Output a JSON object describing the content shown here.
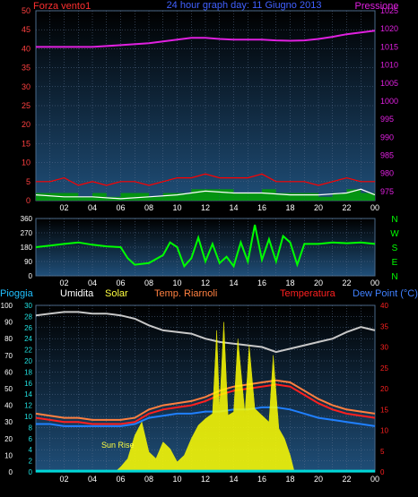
{
  "chart_data": [
    {
      "type": "line",
      "title": "24 hour graph day: 11 Giugno 2013",
      "left_axis_label": "Forza vento1",
      "right_axis_label": "Pressione",
      "x_ticks": [
        "02",
        "04",
        "06",
        "08",
        "10",
        "12",
        "14",
        "16",
        "18",
        "20",
        "22",
        "00"
      ],
      "x_range": [
        0,
        24
      ],
      "ylim_left": [
        0,
        50
      ],
      "y_ticks_left": [
        0,
        5,
        10,
        15,
        20,
        25,
        30,
        35,
        40,
        45,
        50
      ],
      "ylim_right": [
        972.5,
        1025
      ],
      "y_ticks_right": [
        975,
        980,
        985,
        990,
        995,
        1000,
        1005,
        1010,
        1015,
        1020,
        1025
      ],
      "grid": true,
      "series": [
        {
          "key": "pressure",
          "axis": "right",
          "color": "#e020e0",
          "x": [
            0,
            2,
            4,
            6,
            8,
            9,
            10,
            11,
            12,
            13,
            14,
            15,
            16,
            17,
            18,
            19,
            20,
            21,
            22,
            23,
            24
          ],
          "values": [
            1015,
            1015,
            1015,
            1015.5,
            1016,
            1016.5,
            1017,
            1017.5,
            1017.5,
            1017.2,
            1017,
            1017,
            1017,
            1016.8,
            1016.7,
            1016.8,
            1017.2,
            1017.8,
            1018.5,
            1019,
            1019.5
          ]
        },
        {
          "key": "wind_gust",
          "axis": "left",
          "color": "#ff0000",
          "x": [
            0,
            1,
            2,
            3,
            4,
            5,
            6,
            7,
            8,
            9,
            10,
            11,
            12,
            13,
            14,
            15,
            16,
            17,
            18,
            19,
            20,
            21,
            22,
            23,
            24
          ],
          "values": [
            5,
            5,
            6,
            4,
            5,
            4,
            5,
            5,
            4,
            5,
            6,
            6,
            7,
            6,
            6,
            6,
            7,
            5,
            5,
            5,
            4,
            5,
            6,
            5,
            5
          ]
        },
        {
          "key": "wind_speed",
          "axis": "left",
          "color": "#00a000",
          "x": [
            0,
            1,
            2,
            3,
            4,
            5,
            6,
            7,
            8,
            9,
            10,
            11,
            12,
            13,
            14,
            15,
            16,
            17,
            18,
            19,
            20,
            21,
            22,
            23,
            24
          ],
          "values": [
            2,
            2,
            2,
            1,
            2,
            1,
            2,
            2,
            1,
            2,
            2,
            3,
            3,
            3,
            2,
            2,
            3,
            2,
            2,
            2,
            1,
            2,
            3,
            2,
            2
          ]
        },
        {
          "key": "wind_avg",
          "axis": "left",
          "color": "#ffffff",
          "x": [
            0,
            2,
            4,
            6,
            8,
            10,
            12,
            14,
            16,
            18,
            20,
            22,
            23,
            24
          ],
          "values": [
            1.5,
            1,
            1,
            0.5,
            1,
            1.5,
            2.5,
            2,
            2,
            1.5,
            1.5,
            2,
            3,
            1.5
          ]
        }
      ]
    },
    {
      "type": "line",
      "x_ticks": [
        "02",
        "04",
        "06",
        "08",
        "10",
        "12",
        "14",
        "16",
        "18",
        "20",
        "22",
        "00"
      ],
      "ylim": [
        0,
        360
      ],
      "y_ticks": [
        0,
        90,
        180,
        270,
        360
      ],
      "direction_labels": [
        "N",
        "W",
        "S",
        "E",
        "N"
      ],
      "series": [
        {
          "key": "wind_direction",
          "color": "#00ff00",
          "x": [
            0,
            1,
            2,
            3,
            4,
            5,
            6,
            6.5,
            7,
            8,
            9,
            9.5,
            10,
            10.5,
            11,
            11.5,
            12,
            12.5,
            13,
            13.5,
            14,
            14.5,
            15,
            15.5,
            16,
            16.5,
            17,
            17.5,
            18,
            18.5,
            19,
            20,
            21,
            22,
            23,
            24
          ],
          "values": [
            180,
            190,
            200,
            210,
            195,
            185,
            180,
            110,
            70,
            80,
            130,
            210,
            180,
            60,
            110,
            240,
            90,
            200,
            80,
            120,
            60,
            210,
            90,
            320,
            100,
            230,
            90,
            250,
            210,
            70,
            200,
            200,
            210,
            205,
            210,
            200
          ]
        }
      ]
    },
    {
      "type": "line",
      "legend": [
        "Pioggia",
        "Umidita",
        "Solar",
        "Temp. Riarnoli",
        "Temperatura",
        "Dew Point (°C)"
      ],
      "x_ticks": [
        "02",
        "04",
        "06",
        "08",
        "10",
        "12",
        "14",
        "16",
        "18",
        "20",
        "22",
        "00"
      ],
      "ylim_left_outer": [
        0,
        100
      ],
      "y_ticks_left_outer": [
        0,
        10,
        20,
        30,
        40,
        50,
        60,
        70,
        80,
        90,
        100
      ],
      "ylim_left_inner": [
        0,
        30
      ],
      "y_ticks_left_inner": [
        0,
        2,
        4,
        6,
        8,
        10,
        12,
        14,
        16,
        18,
        20,
        22,
        24,
        26,
        28,
        30
      ],
      "ylim_right": [
        0,
        40
      ],
      "y_ticks_right": [
        0,
        5,
        10,
        15,
        20,
        25,
        30,
        35,
        40
      ],
      "annotation": "Sun Rise",
      "annotation_x": 5.6,
      "series": [
        {
          "key": "humidity",
          "axis": "left_outer",
          "color": "#c8c8c8",
          "x": [
            0,
            1,
            2,
            3,
            4,
            5,
            6,
            7,
            8,
            9,
            10,
            11,
            12,
            13,
            14,
            15,
            16,
            17,
            18,
            19,
            20,
            21,
            22,
            23,
            24
          ],
          "values": [
            94,
            95,
            96,
            96,
            95,
            95,
            94,
            92,
            88,
            85,
            84,
            83,
            80,
            78,
            77,
            76,
            75,
            72,
            74,
            76,
            78,
            80,
            84,
            87,
            85
          ]
        },
        {
          "key": "temp_apparent",
          "axis": "right",
          "color": "#ff8040",
          "x": [
            0,
            1,
            2,
            3,
            4,
            5,
            6,
            7,
            8,
            9,
            10,
            11,
            12,
            13,
            14,
            15,
            16,
            17,
            18,
            19,
            20,
            21,
            22,
            23,
            24
          ],
          "values": [
            14,
            13.5,
            13,
            13,
            12.5,
            12.5,
            12.5,
            13,
            15,
            16,
            16.5,
            17,
            18,
            19.5,
            20.5,
            21,
            21.5,
            22,
            21.5,
            19.5,
            17.5,
            16,
            15,
            14.5,
            14
          ]
        },
        {
          "key": "temperature",
          "axis": "right",
          "color": "#ff2020",
          "x": [
            0,
            1,
            2,
            3,
            4,
            5,
            6,
            7,
            8,
            9,
            10,
            11,
            12,
            13,
            14,
            15,
            16,
            17,
            18,
            19,
            20,
            21,
            22,
            23,
            24
          ],
          "values": [
            13,
            12.5,
            12,
            12,
            11.5,
            11.5,
            11.5,
            12,
            14,
            15,
            15.5,
            16,
            17,
            18.5,
            19.5,
            20,
            20.5,
            21,
            20.5,
            18.5,
            16.5,
            15,
            14,
            13.5,
            13
          ]
        },
        {
          "key": "dew_point",
          "axis": "right",
          "color": "#2080ff",
          "x": [
            0,
            1,
            2,
            3,
            4,
            5,
            6,
            7,
            8,
            9,
            10,
            11,
            12,
            13,
            14,
            15,
            16,
            17,
            18,
            19,
            20,
            21,
            22,
            23,
            24
          ],
          "values": [
            11.5,
            11.5,
            11,
            11,
            11,
            11,
            11,
            11.5,
            13,
            13.5,
            14,
            14,
            14.5,
            14.5,
            15,
            15,
            15.5,
            15.5,
            15,
            14,
            13,
            12.5,
            12,
            11.5,
            11
          ]
        },
        {
          "key": "solar",
          "axis": "left_outer",
          "color": "#ffff00",
          "x": [
            5.6,
            6,
            6.5,
            7,
            7.5,
            8,
            8.5,
            9,
            9.5,
            10,
            10.5,
            11,
            11.5,
            12,
            12.5,
            12.8,
            13,
            13.3,
            13.6,
            14,
            14.3,
            14.8,
            15.1,
            15.5,
            16,
            16.5,
            16.8,
            17.2,
            17.6,
            18,
            18.3
          ],
          "values": [
            0,
            3,
            8,
            22,
            30,
            12,
            8,
            18,
            14,
            6,
            10,
            20,
            28,
            32,
            35,
            85,
            38,
            90,
            34,
            36,
            80,
            35,
            76,
            38,
            34,
            30,
            70,
            26,
            20,
            10,
            0
          ]
        },
        {
          "key": "rain",
          "axis": "left_outer",
          "color": "#00d8d8",
          "x": [
            0,
            24
          ],
          "values": [
            0.5,
            0.5
          ]
        }
      ]
    }
  ]
}
